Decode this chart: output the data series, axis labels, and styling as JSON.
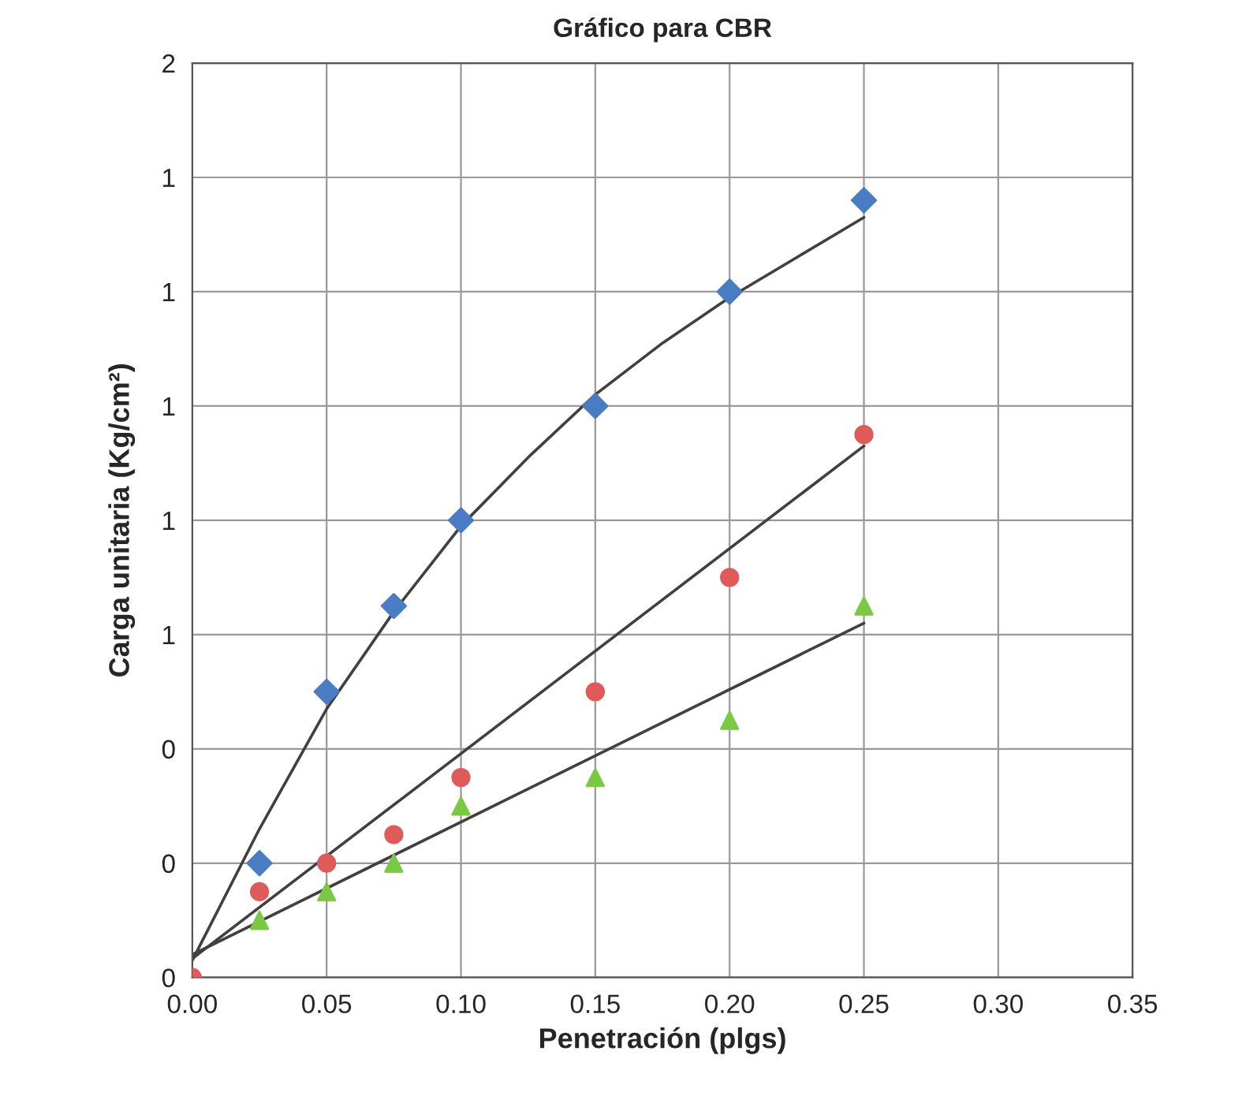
{
  "chart_data": {
    "type": "scatter",
    "title": "Gráfico para CBR",
    "xlabel": "Penetración (plgs)",
    "ylabel": "Carga unitaria (Kg/cm²)",
    "xlim": [
      0,
      0.35
    ],
    "xticks": [
      {
        "value": 0,
        "label": "0.00"
      },
      {
        "value": 0.05,
        "label": "0.05"
      },
      {
        "value": 0.1,
        "label": "0.10"
      },
      {
        "value": 0.15,
        "label": "0.15"
      },
      {
        "value": 0.2,
        "label": "0.20"
      },
      {
        "value": 0.25,
        "label": "0.25"
      },
      {
        "value": 0.3,
        "label": "0.30"
      },
      {
        "value": 0.35,
        "label": "0.35"
      }
    ],
    "ylim": [
      0,
      1.6
    ],
    "yticks": [
      {
        "value": 0,
        "label": "0"
      },
      {
        "value": 0.2,
        "label": "0"
      },
      {
        "value": 0.4,
        "label": "0"
      },
      {
        "value": 0.6,
        "label": "1"
      },
      {
        "value": 0.8,
        "label": "1"
      },
      {
        "value": 1.0,
        "label": "1"
      },
      {
        "value": 1.2,
        "label": "1"
      },
      {
        "value": 1.4,
        "label": "1"
      },
      {
        "value": 1.6,
        "label": "2"
      }
    ],
    "grid": true,
    "series": [
      {
        "type": "line",
        "color": "#404040",
        "marker": "none",
        "x": [
          0,
          0.025,
          0.05,
          0.075,
          0.1,
          0.125,
          0.15,
          0.175,
          0.2,
          0.225,
          0.25
        ],
        "values": [
          0.03,
          0.26,
          0.47,
          0.64,
          0.79,
          0.91,
          1.02,
          1.11,
          1.19,
          1.26,
          1.33
        ]
      },
      {
        "type": "line",
        "color": "#404040",
        "marker": "none",
        "x": [
          0,
          0.25
        ],
        "values": [
          0.033,
          0.93
        ]
      },
      {
        "type": "line",
        "color": "#404040",
        "marker": "none",
        "x": [
          0,
          0.25
        ],
        "values": [
          0.04,
          0.62
        ]
      },
      {
        "color": "#4a7cc4",
        "marker": "diamond",
        "x": [
          0.025,
          0.05,
          0.075,
          0.1,
          0.15,
          0.2,
          0.25
        ],
        "values": [
          0.2,
          0.5,
          0.65,
          0.8,
          1.0,
          1.2,
          1.36
        ]
      },
      {
        "color": "#e05a5a",
        "marker": "circle",
        "x": [
          0,
          0.025,
          0.05,
          0.075,
          0.1,
          0.15,
          0.2,
          0.25
        ],
        "values": [
          0,
          0.15,
          0.2,
          0.25,
          0.35,
          0.5,
          0.7,
          0.95
        ]
      },
      {
        "color": "#7ac943",
        "marker": "triangle",
        "x": [
          0.025,
          0.05,
          0.075,
          0.1,
          0.15,
          0.2,
          0.25
        ],
        "values": [
          0.1,
          0.15,
          0.2,
          0.3,
          0.35,
          0.45,
          0.65
        ]
      }
    ]
  }
}
